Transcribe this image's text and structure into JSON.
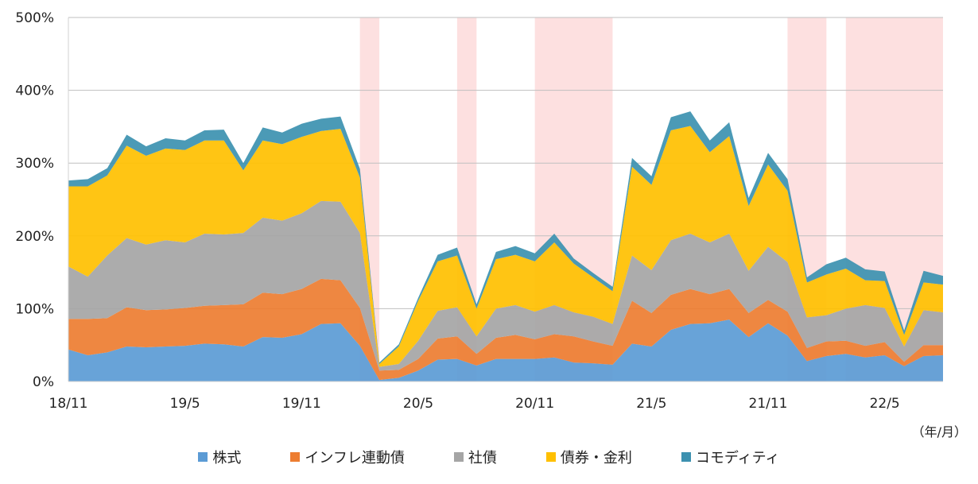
{
  "chart_data": {
    "type": "area",
    "stacked": true,
    "xlabel": "",
    "ylabel": "",
    "unit_label": "（年/月）",
    "ylim": [
      0,
      500
    ],
    "yticks": [
      "0%",
      "100%",
      "200%",
      "300%",
      "400%",
      "500%"
    ],
    "xticks": [
      "18/11",
      "19/5",
      "19/11",
      "20/5",
      "20/11",
      "21/5",
      "21/11",
      "22/5"
    ],
    "grid": "horizontal",
    "legend_position": "bottom",
    "months": [
      "18/11",
      "18/12",
      "19/1",
      "19/2",
      "19/3",
      "19/4",
      "19/5",
      "19/6",
      "19/7",
      "19/8",
      "19/9",
      "19/10",
      "19/11",
      "19/12",
      "20/1",
      "20/2",
      "20/3",
      "20/4",
      "20/5",
      "20/6",
      "20/7",
      "20/8",
      "20/9",
      "20/10",
      "20/11",
      "20/12",
      "21/1",
      "21/2",
      "21/3",
      "21/4",
      "21/5",
      "21/6",
      "21/7",
      "21/8",
      "21/9",
      "21/10",
      "21/11",
      "21/12",
      "22/1",
      "22/2",
      "22/3",
      "22/4",
      "22/5",
      "22/6",
      "22/7",
      "22/8"
    ],
    "shaded_periods": [
      {
        "start": "20/2",
        "end": "20/3"
      },
      {
        "start": "20/7",
        "end": "20/8"
      },
      {
        "start": "20/11",
        "end": "21/3"
      },
      {
        "start": "21/12",
        "end": "22/2"
      },
      {
        "start": "22/3",
        "end": "22/8"
      }
    ],
    "series": [
      {
        "name": "株式",
        "color": "#5b9bd5",
        "values": [
          44,
          36,
          40,
          48,
          47,
          48,
          49,
          52,
          51,
          48,
          61,
          60,
          65,
          79,
          80,
          49,
          2,
          5,
          15,
          30,
          31,
          22,
          31,
          31,
          31,
          33,
          26,
          25,
          23,
          52,
          48,
          71,
          79,
          80,
          85,
          61,
          80,
          63,
          28,
          35,
          38,
          33,
          36,
          21,
          35,
          36
        ]
      },
      {
        "name": "インフレ連動債",
        "color": "#ed7d31",
        "values": [
          42,
          50,
          47,
          54,
          51,
          51,
          52,
          52,
          54,
          58,
          61,
          60,
          62,
          62,
          59,
          52,
          13,
          11,
          16,
          29,
          31,
          16,
          29,
          33,
          27,
          32,
          36,
          30,
          26,
          59,
          46,
          48,
          48,
          40,
          42,
          33,
          32,
          33,
          18,
          20,
          18,
          16,
          18,
          6,
          15,
          14
        ]
      },
      {
        "name": "社債",
        "color": "#a5a5a5",
        "values": [
          72,
          58,
          86,
          95,
          90,
          95,
          90,
          99,
          97,
          98,
          103,
          101,
          104,
          107,
          108,
          103,
          5,
          8,
          25,
          38,
          40,
          24,
          40,
          41,
          38,
          40,
          33,
          34,
          30,
          62,
          59,
          75,
          76,
          71,
          76,
          58,
          73,
          68,
          42,
          36,
          44,
          56,
          47,
          21,
          48,
          45
        ]
      },
      {
        "name": "債券・金利",
        "color": "#ffc000",
        "values": [
          110,
          124,
          110,
          127,
          122,
          126,
          127,
          128,
          129,
          86,
          106,
          105,
          105,
          96,
          100,
          76,
          4,
          24,
          55,
          68,
          71,
          38,
          68,
          69,
          69,
          86,
          67,
          54,
          45,
          122,
          117,
          151,
          148,
          124,
          134,
          89,
          113,
          98,
          48,
          56,
          55,
          34,
          37,
          16,
          38,
          38
        ]
      },
      {
        "name": "コモディティ",
        "color": "#3c91b0",
        "values": [
          8,
          10,
          10,
          15,
          13,
          14,
          13,
          14,
          15,
          10,
          18,
          16,
          18,
          17,
          17,
          12,
          2,
          3,
          4,
          9,
          11,
          6,
          10,
          12,
          11,
          12,
          7,
          6,
          6,
          12,
          12,
          18,
          20,
          16,
          19,
          11,
          16,
          16,
          7,
          14,
          15,
          15,
          13,
          6,
          16,
          12
        ]
      }
    ]
  }
}
